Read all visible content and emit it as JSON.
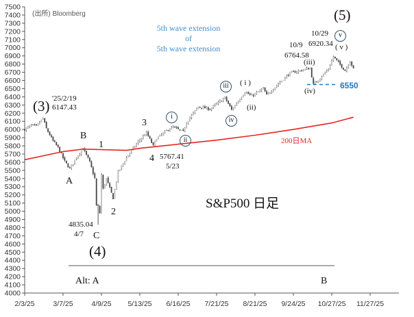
{
  "chart_data": {
    "type": "candlestick",
    "title": "S&P500 日足",
    "source": "(出所) Bloomberg",
    "ylim": [
      4000,
      7500
    ],
    "ytick_step": 100,
    "x_ticks": [
      "2/3/25",
      "3/7/25",
      "4/9/25",
      "5/13/25",
      "6/16/25",
      "7/21/25",
      "8/21/25",
      "9/24/25",
      "10/27/25",
      "11/27/25"
    ],
    "price_path": [
      [
        "2025-02-03",
        6000
      ],
      [
        "2025-02-07",
        6050
      ],
      [
        "2025-02-12",
        6040
      ],
      [
        "2025-02-19",
        6140
      ],
      [
        "2025-02-21",
        6010
      ],
      [
        "2025-02-27",
        5860
      ],
      [
        "2025-03-04",
        5780
      ],
      [
        "2025-03-10",
        5610
      ],
      [
        "2025-03-13",
        5520
      ],
      [
        "2025-03-19",
        5660
      ],
      [
        "2025-03-25",
        5770
      ],
      [
        "2025-03-31",
        5600
      ],
      [
        "2025-04-03",
        5400
      ],
      [
        "2025-04-04",
        5070
      ],
      [
        "2025-04-07",
        5060
      ],
      [
        "2025-04-08",
        4980
      ],
      [
        "2025-04-09",
        5450
      ],
      [
        "2025-04-10",
        5270
      ],
      [
        "2025-04-14",
        5400
      ],
      [
        "2025-04-21",
        5160
      ],
      [
        "2025-04-24",
        5480
      ],
      [
        "2025-05-02",
        5690
      ],
      [
        "2025-05-12",
        5850
      ],
      [
        "2025-05-19",
        5960
      ],
      [
        "2025-05-23",
        5800
      ],
      [
        "2025-05-28",
        5890
      ],
      [
        "2025-06-06",
        6000
      ],
      [
        "2025-06-11",
        6030
      ],
      [
        "2025-06-20",
        5970
      ],
      [
        "2025-06-24",
        6090
      ],
      [
        "2025-07-03",
        6280
      ],
      [
        "2025-07-15",
        6250
      ],
      [
        "2025-07-28",
        6390
      ],
      [
        "2025-08-01",
        6240
      ],
      [
        "2025-08-13",
        6460
      ],
      [
        "2025-08-19",
        6410
      ],
      [
        "2025-08-28",
        6500
      ],
      [
        "2025-09-02",
        6420
      ],
      [
        "2025-09-12",
        6580
      ],
      [
        "2025-09-22",
        6690
      ],
      [
        "2025-10-08",
        6750
      ],
      [
        "2025-10-10",
        6550
      ],
      [
        "2025-10-16",
        6630
      ],
      [
        "2025-10-23",
        6740
      ],
      [
        "2025-10-28",
        6890
      ],
      [
        "2025-11-04",
        6770
      ],
      [
        "2025-11-06",
        6720
      ],
      [
        "2025-11-11",
        6840
      ],
      [
        "2025-11-13",
        6740
      ]
    ],
    "low_4_7": 4835.04,
    "ma200_name": "200日MA",
    "ma200_path": [
      [
        "2025-02-03",
        5630
      ],
      [
        "2025-03-07",
        5730
      ],
      [
        "2025-03-25",
        5760
      ],
      [
        "2025-05-01",
        5745
      ],
      [
        "2025-05-13",
        5770
      ],
      [
        "2025-06-16",
        5820
      ],
      [
        "2025-07-21",
        5870
      ],
      [
        "2025-08-21",
        5930
      ],
      [
        "2025-09-24",
        6000
      ],
      [
        "2025-10-27",
        6080
      ],
      [
        "2025-11-13",
        6150
      ]
    ],
    "support_level": 6550,
    "colors": {
      "candle": "#555555",
      "ma": "#e8231f",
      "support": "#1f77c4",
      "annotation_blue": "#3d8fd1"
    },
    "annotations": {
      "w3": "(3)",
      "w3_date": "'25/2/19",
      "w3_val": "6147.43",
      "A": "A",
      "B": "B",
      "C": "C",
      "w4": "(4)",
      "low_val": "4835.04",
      "low_date": "4/7",
      "n1": "1",
      "n2": "2",
      "n3": "3",
      "n4": "4",
      "n4_val": "5767.41",
      "n4_date": "5/23",
      "ci": "i",
      "cii": "ii",
      "ciii": "iii",
      "civ": "iv",
      "cv": "v",
      "pi": "( i )",
      "pii": "(ii)",
      "piii": "(iii)",
      "piv": "(iv)",
      "pv": "( v )",
      "d109": "10/9",
      "v109": "6764.58",
      "d1029": "10/29",
      "v1029": "6920.34",
      "w5": "(5)",
      "ext1": "5th wave extension",
      "ext2": "of",
      "ext3": "5th wave extension",
      "support_label": "6550",
      "alt_a": "Alt: A",
      "alt_b": "B"
    }
  }
}
